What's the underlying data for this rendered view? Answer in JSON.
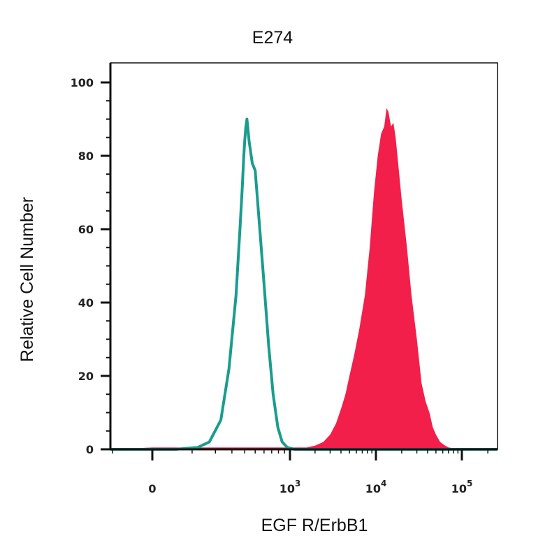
{
  "chart_data": {
    "type": "area",
    "title": "E274",
    "xlabel": "EGF R/ErbB1",
    "ylabel": "Relative Cell Number",
    "x_scale": "biexponential",
    "ylim": [
      0,
      100
    ],
    "yticks": [
      {
        "value": 0,
        "label": "0"
      },
      {
        "value": 20,
        "label": "20"
      },
      {
        "value": 40,
        "label": "40"
      },
      {
        "value": 60,
        "label": "60"
      },
      {
        "value": 80,
        "label": "80"
      },
      {
        "value": 100,
        "label": "100"
      }
    ],
    "xticks": [
      {
        "value": 0,
        "label": "0",
        "base": "0",
        "exp": ""
      },
      {
        "value": 1000,
        "label": "10^3",
        "base": "10",
        "exp": "3"
      },
      {
        "value": 10000,
        "label": "10^4",
        "base": "10",
        "exp": "4"
      },
      {
        "value": 100000,
        "label": "10^5",
        "base": "10",
        "exp": "5"
      }
    ],
    "grid": false,
    "series": [
      {
        "style": "outline",
        "color": "#1a9c8e",
        "x": [
          -2000,
          -500,
          -100,
          0,
          50,
          120,
          170,
          230,
          280,
          330,
          360,
          380,
          390,
          400,
          410,
          420,
          440,
          470,
          500,
          550,
          600,
          660,
          720,
          790,
          860,
          950,
          1150,
          2000,
          10000,
          300000
        ],
        "y": [
          0,
          0,
          0,
          0,
          0,
          0.5,
          2,
          8,
          22,
          42,
          60,
          72,
          79,
          84,
          88,
          90,
          84,
          78,
          76,
          60,
          45,
          28,
          15,
          6,
          2,
          0.5,
          0,
          0,
          0,
          0
        ]
      },
      {
        "style": "filled",
        "color": "#f21f4a",
        "x": [
          -300,
          0,
          1000,
          1600,
          2000,
          2500,
          3000,
          3500,
          4000,
          4500,
          5000,
          5700,
          6500,
          7500,
          8500,
          9500,
          10500,
          11500,
          12500,
          13300,
          14000,
          15000,
          16000,
          17000,
          18000,
          20000,
          23000,
          26000,
          30000,
          34000,
          38000,
          42000,
          46000,
          50000,
          56000,
          62000,
          70000,
          80000,
          90000
        ],
        "y": [
          0,
          0.5,
          0.5,
          0.5,
          1,
          2,
          4,
          7,
          11,
          15,
          20,
          26,
          33,
          42,
          55,
          70,
          80,
          86,
          88,
          93,
          92,
          88,
          89,
          85,
          79,
          68,
          55,
          42,
          30,
          18,
          13,
          10,
          6,
          4,
          2,
          1.2,
          0.5,
          0.3,
          0
        ]
      }
    ]
  }
}
